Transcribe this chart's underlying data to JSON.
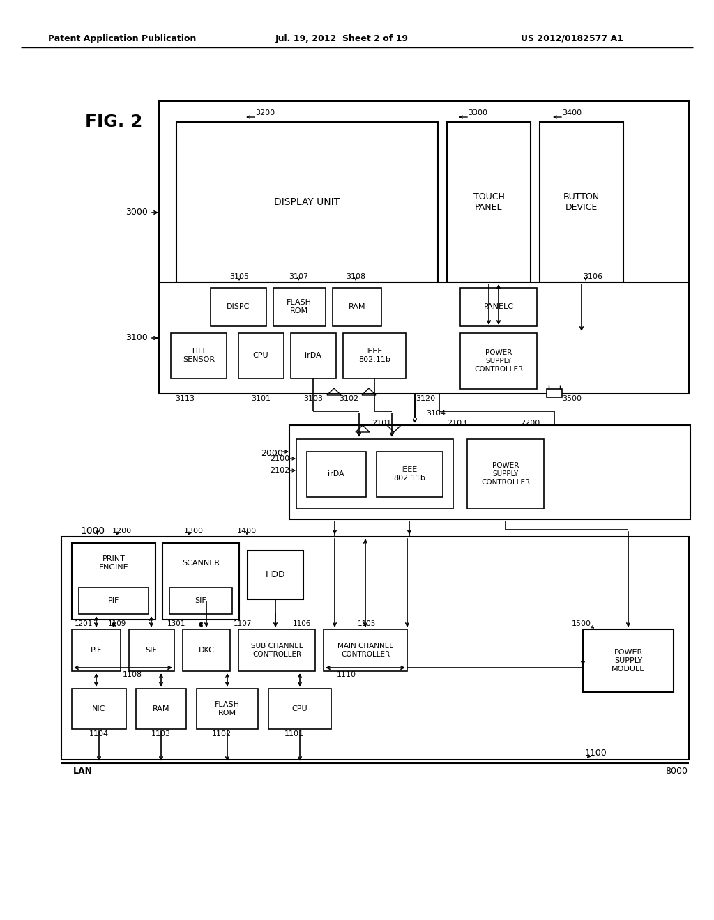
{
  "header_left": "Patent Application Publication",
  "header_mid": "Jul. 19, 2012  Sheet 2 of 19",
  "header_right": "US 2012/0182577 A1",
  "bg_color": "#ffffff"
}
